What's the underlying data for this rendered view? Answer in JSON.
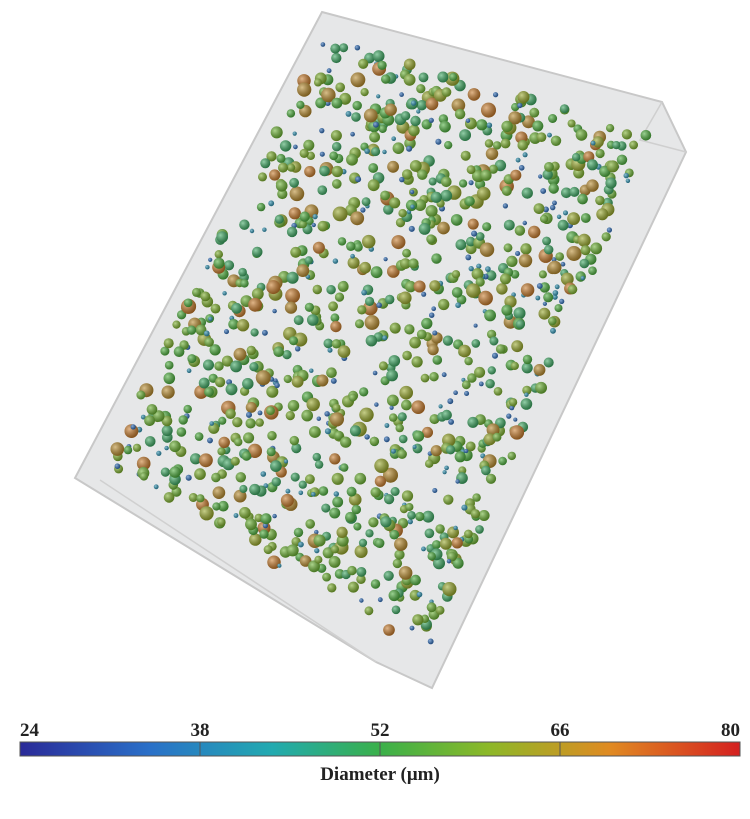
{
  "colorbar": {
    "label": "Diameter (μm)",
    "range": [
      24,
      80
    ],
    "ticks": [
      24,
      38,
      52,
      66,
      80
    ]
  }
}
